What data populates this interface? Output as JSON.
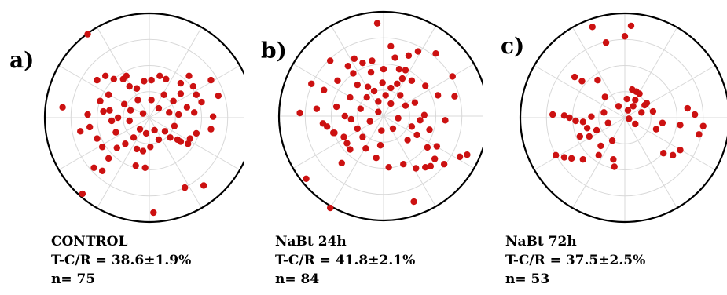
{
  "panels": [
    {
      "letter": "a)",
      "caption": {
        "line1": "CONTROL",
        "line2": "T-C/R = 38.6±1.9%",
        "line3": "n= 75"
      }
    },
    {
      "letter": "b)",
      "caption": {
        "line1": "NaBt 24h",
        "line2": "T-C/R = 41.8±2.1%",
        "line3": "n= 84"
      }
    },
    {
      "letter": "c)",
      "caption": {
        "line1": "NaBt 72h",
        "line2": "T-C/R = 37.5±2.5%",
        "line3": "n= 53"
      }
    }
  ],
  "colors": {
    "points": "#cc1111",
    "circle": "#000000",
    "grid": "#d8d8d8"
  },
  "chart_data": [
    {
      "type": "scatter",
      "title": "",
      "coordinate_system": "polar",
      "grid": true,
      "xlim": [
        -1,
        1
      ],
      "ylim": [
        -1,
        1
      ],
      "points": [
        [
          -0.59,
          0.8
        ],
        [
          -0.83,
          0.1
        ],
        [
          -0.66,
          -0.13
        ],
        [
          -0.57,
          -0.09
        ],
        [
          -0.59,
          0.03
        ],
        [
          -0.47,
          0.16
        ],
        [
          -0.5,
          0.36
        ],
        [
          -0.42,
          0.4
        ],
        [
          -0.34,
          0.37
        ],
        [
          -0.25,
          0.37
        ],
        [
          -0.19,
          0.3
        ],
        [
          -0.12,
          0.28
        ],
        [
          -0.05,
          0.35
        ],
        [
          0.02,
          0.36
        ],
        [
          0.16,
          0.37
        ],
        [
          0.3,
          0.33
        ],
        [
          0.42,
          0.3
        ],
        [
          0.45,
          0.22
        ],
        [
          0.5,
          0.15
        ],
        [
          0.59,
          0.36
        ],
        [
          0.66,
          0.21
        ],
        [
          0.61,
          0.01
        ],
        [
          0.59,
          -0.11
        ],
        [
          0.45,
          -0.15
        ],
        [
          0.37,
          -0.25
        ],
        [
          0.27,
          -0.21
        ],
        [
          0.2,
          -0.19
        ],
        [
          0.15,
          -0.13
        ],
        [
          0.09,
          -0.21
        ],
        [
          0.05,
          -0.12
        ],
        [
          -0.03,
          -0.15
        ],
        [
          -0.09,
          -0.11
        ],
        [
          -0.15,
          -0.19
        ],
        [
          -0.23,
          -0.25
        ],
        [
          -0.31,
          -0.29
        ],
        [
          -0.39,
          -0.39
        ],
        [
          -0.45,
          -0.28
        ],
        [
          -0.5,
          -0.2
        ],
        [
          -0.53,
          -0.48
        ],
        [
          -0.64,
          -0.73
        ],
        [
          -0.45,
          -0.51
        ],
        [
          -0.13,
          -0.46
        ],
        [
          -0.04,
          -0.48
        ],
        [
          0.34,
          -0.67
        ],
        [
          0.52,
          -0.65
        ],
        [
          0.04,
          -0.91
        ],
        [
          -0.38,
          0.07
        ],
        [
          -0.3,
          0.0
        ],
        [
          -0.24,
          0.13
        ],
        [
          -0.18,
          0.07
        ],
        [
          -0.11,
          0.17
        ],
        [
          -0.06,
          0.04
        ],
        [
          0.02,
          0.17
        ],
        [
          0.09,
          0.09
        ],
        [
          0.14,
          0.22
        ],
        [
          0.23,
          0.16
        ],
        [
          0.28,
          0.03
        ],
        [
          0.36,
          0.1
        ],
        [
          0.43,
          0.05
        ],
        [
          0.24,
          -0.08
        ],
        [
          -0.39,
          0.22
        ],
        [
          -0.32,
          -0.14
        ],
        [
          -0.19,
          -0.03
        ],
        [
          -0.12,
          -0.3
        ],
        [
          0.01,
          -0.28
        ],
        [
          0.3,
          0.23
        ],
        [
          0.38,
          0.4
        ],
        [
          0.1,
          0.4
        ],
        [
          -0.22,
          0.4
        ],
        [
          -0.44,
          0.06
        ],
        [
          0.3,
          -0.23
        ],
        [
          -0.06,
          -0.32
        ],
        [
          0.39,
          -0.2
        ],
        [
          -0.36,
          -0.03
        ],
        [
          0.19,
          0.05
        ]
      ]
    },
    {
      "type": "scatter",
      "title": "",
      "coordinate_system": "polar",
      "grid": true,
      "xlim": [
        -1,
        1
      ],
      "ylim": [
        -1,
        1
      ],
      "points": [
        [
          -0.51,
          0.53
        ],
        [
          -0.34,
          0.48
        ],
        [
          -0.2,
          0.51
        ],
        [
          -0.11,
          0.53
        ],
        [
          -0.12,
          0.42
        ],
        [
          -0.29,
          0.41
        ],
        [
          -0.69,
          0.31
        ],
        [
          -0.8,
          0.03
        ],
        [
          -0.54,
          -0.1
        ],
        [
          -0.47,
          -0.16
        ],
        [
          -0.38,
          -0.2
        ],
        [
          -0.31,
          -0.03
        ],
        [
          -0.22,
          0.07
        ],
        [
          -0.16,
          0.18
        ],
        [
          -0.09,
          0.24
        ],
        [
          -0.01,
          0.32
        ],
        [
          0.07,
          0.27
        ],
        [
          0.18,
          0.36
        ],
        [
          0.27,
          0.34
        ],
        [
          0.33,
          0.62
        ],
        [
          0.4,
          0.29
        ],
        [
          0.5,
          0.6
        ],
        [
          0.66,
          0.38
        ],
        [
          0.68,
          0.19
        ],
        [
          0.59,
          -0.04
        ],
        [
          0.51,
          -0.29
        ],
        [
          0.49,
          -0.41
        ],
        [
          0.4,
          -0.49
        ],
        [
          0.31,
          -0.5
        ],
        [
          0.19,
          -0.46
        ],
        [
          0.05,
          -0.49
        ],
        [
          -0.03,
          -0.28
        ],
        [
          -0.17,
          -0.31
        ],
        [
          -0.35,
          -0.26
        ],
        [
          -0.48,
          -0.16
        ],
        [
          -0.32,
          0.18
        ],
        [
          -0.45,
          0.09
        ],
        [
          -0.57,
          0.25
        ],
        [
          -0.13,
          -0.05
        ],
        [
          -0.05,
          0.04
        ],
        [
          0.07,
          0.12
        ],
        [
          0.14,
          -0.02
        ],
        [
          0.21,
          0.1
        ],
        [
          0.3,
          0.13
        ],
        [
          0.39,
          0.01
        ],
        [
          0.44,
          -0.13
        ],
        [
          0.32,
          -0.18
        ],
        [
          0.23,
          -0.23
        ],
        [
          0.09,
          -0.12
        ],
        [
          -0.02,
          -0.14
        ],
        [
          -0.25,
          -0.12
        ],
        [
          -0.4,
          -0.45
        ],
        [
          -0.74,
          -0.6
        ],
        [
          -0.51,
          -0.88
        ],
        [
          0.29,
          -0.82
        ],
        [
          0.73,
          -0.39
        ],
        [
          0.8,
          -0.37
        ],
        [
          0.58,
          -0.46
        ],
        [
          0.45,
          -0.48
        ],
        [
          -0.06,
          0.89
        ],
        [
          0.07,
          0.67
        ],
        [
          0.21,
          0.44
        ],
        [
          -0.28,
          0.55
        ],
        [
          -0.44,
          0.34
        ],
        [
          -0.64,
          0.07
        ],
        [
          -0.25,
          0.3
        ],
        [
          0.0,
          0.45
        ],
        [
          0.11,
          0.56
        ],
        [
          -0.37,
          0.0
        ],
        [
          -0.2,
          -0.2
        ],
        [
          0.35,
          -0.04
        ],
        [
          0.27,
          -0.1
        ],
        [
          0.16,
          0.2
        ],
        [
          -0.07,
          -0.4
        ],
        [
          0.02,
          0.2
        ],
        [
          -0.15,
          0.28
        ],
        [
          0.52,
          0.2
        ],
        [
          0.42,
          -0.3
        ],
        [
          0.13,
          0.31
        ],
        [
          -0.32,
          -0.32
        ],
        [
          -0.58,
          -0.07
        ],
        [
          0.15,
          0.45
        ],
        [
          -0.05,
          0.14
        ],
        [
          0.24,
          0.58
        ]
      ]
    },
    {
      "type": "scatter",
      "title": "",
      "coordinate_system": "polar",
      "grid": true,
      "xlim": [
        -1,
        1
      ],
      "ylim": [
        -1,
        1
      ],
      "points": [
        [
          -0.31,
          0.87
        ],
        [
          -0.18,
          0.72
        ],
        [
          0.0,
          0.78
        ],
        [
          0.06,
          0.88
        ],
        [
          -0.48,
          0.39
        ],
        [
          -0.41,
          0.35
        ],
        [
          -0.26,
          0.36
        ],
        [
          -0.69,
          0.03
        ],
        [
          -0.53,
          0.0
        ],
        [
          -0.47,
          -0.03
        ],
        [
          -0.4,
          -0.04
        ],
        [
          -0.32,
          0.01
        ],
        [
          -0.27,
          -0.12
        ],
        [
          -0.34,
          -0.18
        ],
        [
          -0.43,
          -0.18
        ],
        [
          -0.66,
          -0.36
        ],
        [
          -0.58,
          -0.38
        ],
        [
          -0.51,
          -0.39
        ],
        [
          -0.4,
          -0.4
        ],
        [
          -0.25,
          -0.36
        ],
        [
          -0.11,
          -0.4
        ],
        [
          -0.1,
          -0.47
        ],
        [
          -0.12,
          -0.22
        ],
        [
          -0.06,
          0.11
        ],
        [
          0.02,
          0.18
        ],
        [
          0.03,
          0.07
        ],
        [
          0.04,
          -0.01
        ],
        [
          0.1,
          -0.06
        ],
        [
          0.16,
          0.05
        ],
        [
          0.19,
          0.12
        ],
        [
          0.1,
          0.17
        ],
        [
          0.07,
          0.27
        ],
        [
          0.14,
          0.23
        ],
        [
          0.21,
          0.14
        ],
        [
          0.27,
          0.06
        ],
        [
          0.36,
          -0.05
        ],
        [
          0.53,
          -0.07
        ],
        [
          0.67,
          0.03
        ],
        [
          0.75,
          -0.08
        ],
        [
          0.71,
          -0.16
        ],
        [
          0.53,
          -0.31
        ],
        [
          0.46,
          -0.36
        ],
        [
          0.37,
          -0.34
        ],
        [
          -0.16,
          -0.05
        ],
        [
          -0.2,
          0.05
        ],
        [
          -0.36,
          -0.1
        ],
        [
          -0.58,
          0.02
        ],
        [
          -0.23,
          -0.27
        ],
        [
          0.08,
          0.11
        ],
        [
          0.11,
          0.25
        ],
        [
          0.6,
          0.09
        ],
        [
          0.3,
          -0.11
        ],
        [
          -0.19,
          0.2
        ]
      ]
    }
  ]
}
